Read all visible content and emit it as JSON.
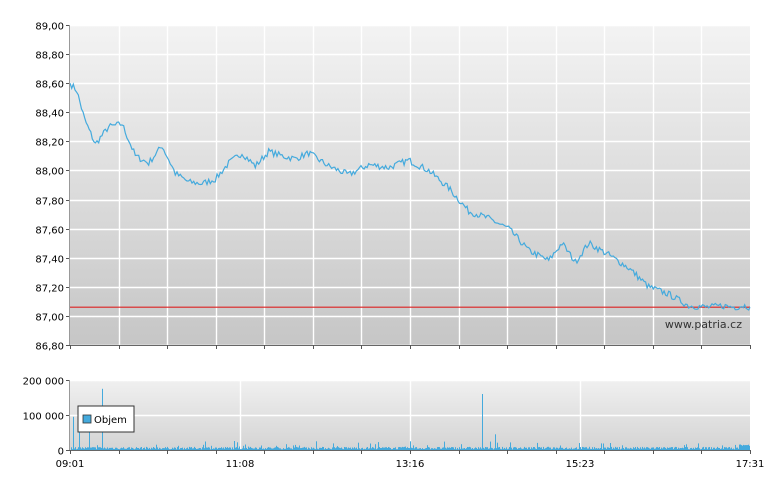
{
  "watermark": "www.patria.cz",
  "colors": {
    "price_line": "#44aadd",
    "reference_line": "#dd2222",
    "volume_bar": "#44aadd"
  },
  "chart_data": [
    {
      "type": "line",
      "xlabel": "",
      "ylabel": "",
      "ylim": [
        86.8,
        89.0
      ],
      "grid": true,
      "y_ticks": [
        "89,00",
        "88,80",
        "88,60",
        "88,40",
        "88,20",
        "88,00",
        "87,80",
        "87,60",
        "87,40",
        "87,20",
        "87,00",
        "86,80"
      ],
      "reference_line": 87.06,
      "series": [
        {
          "x": [
            "09:01",
            "09:06",
            "09:12",
            "09:20",
            "09:30",
            "09:40",
            "09:50",
            "10:00",
            "10:10",
            "10:20",
            "10:30",
            "10:40",
            "10:50",
            "11:00",
            "11:10",
            "11:20",
            "11:30",
            "11:40",
            "11:50",
            "12:00",
            "12:15",
            "12:30",
            "12:45",
            "13:00",
            "13:15",
            "13:30",
            "13:45",
            "14:00",
            "14:15",
            "14:30",
            "14:45",
            "15:00",
            "15:10",
            "15:20",
            "15:30",
            "15:45",
            "16:00",
            "16:15",
            "16:30",
            "16:45",
            "17:00",
            "17:10",
            "17:20",
            "17:25",
            "17:28",
            "17:31"
          ],
          "values": [
            88.6,
            88.55,
            88.35,
            88.18,
            88.3,
            88.32,
            88.1,
            88.05,
            88.17,
            87.98,
            87.92,
            87.91,
            87.94,
            88.05,
            88.12,
            88.03,
            88.13,
            88.1,
            88.08,
            88.12,
            88.03,
            87.97,
            88.04,
            88.02,
            88.07,
            88.0,
            87.88,
            87.72,
            87.67,
            87.6,
            87.45,
            87.38,
            87.5,
            87.37,
            87.5,
            87.42,
            87.33,
            87.2,
            87.15,
            87.07,
            87.06,
            87.07,
            87.06,
            87.07,
            87.07,
            87.06
          ]
        }
      ]
    },
    {
      "type": "bar",
      "xlabel": "",
      "ylabel": "",
      "ylim": [
        0,
        200000
      ],
      "y_ticks": [
        "200 000",
        "100 000",
        "0"
      ],
      "x_ticks": [
        "09:01",
        "11:08",
        "13:16",
        "15:23",
        "17:31"
      ],
      "legend": {
        "label": "Objem",
        "placement": "top-left"
      },
      "series": [
        {
          "name": "Objem",
          "x": [
            "09:01",
            "09:03",
            "09:08",
            "09:15",
            "09:25",
            "11:08",
            "13:16",
            "14:10",
            "14:20",
            "15:23",
            "17:31"
          ],
          "values": [
            150000,
            95000,
            90000,
            110000,
            175000,
            10000,
            25000,
            160000,
            45000,
            20000,
            15000
          ]
        }
      ]
    }
  ]
}
